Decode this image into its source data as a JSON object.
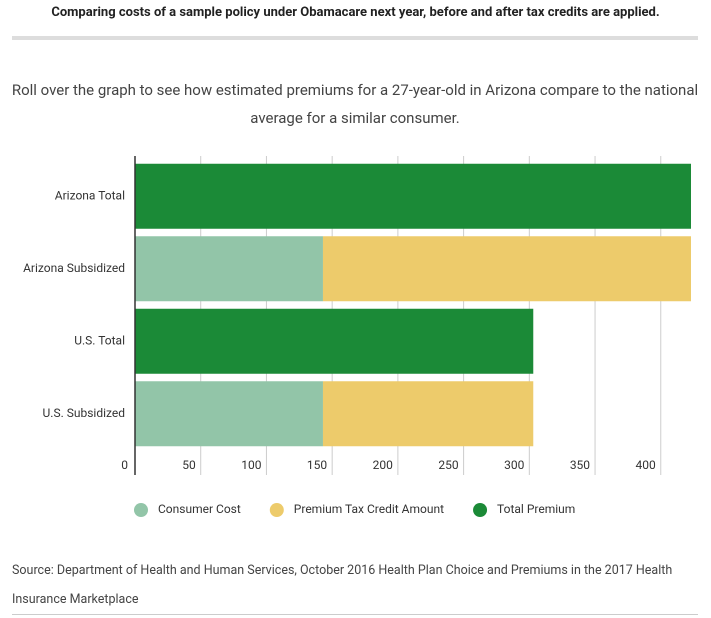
{
  "header": {
    "title": "Comparing costs of a sample policy under Obamacare next year, before and after tax credits are applied."
  },
  "subtitle": "Roll over the graph to see how estimated premiums for a 27-year-old in Arizona compare to the national average for a similar consumer.",
  "chart_data": {
    "type": "bar",
    "orientation": "horizontal",
    "stacked": true,
    "categories": [
      "Arizona Total",
      "Arizona Subsidized",
      "U.S. Total",
      "U.S. Subsidized"
    ],
    "series": [
      {
        "name": "Consumer Cost",
        "color": "#92c5a8",
        "values": [
          null,
          143,
          null,
          143
        ]
      },
      {
        "name": "Premium Tax Credit Amount",
        "color": "#edcb6b",
        "values": [
          null,
          280,
          null,
          160
        ]
      },
      {
        "name": "Total Premium",
        "color": "#1b8a37",
        "values": [
          423,
          null,
          303,
          null
        ]
      }
    ],
    "xlim": [
      0,
      423
    ],
    "xticks": [
      0,
      50,
      100,
      150,
      200,
      250,
      300,
      350,
      400
    ],
    "grid": true,
    "legend": "bottom"
  },
  "source": "Source: Department of Health and Human Services, October 2016 Health Plan Choice and Premiums in the 2017 Health Insurance Marketplace"
}
